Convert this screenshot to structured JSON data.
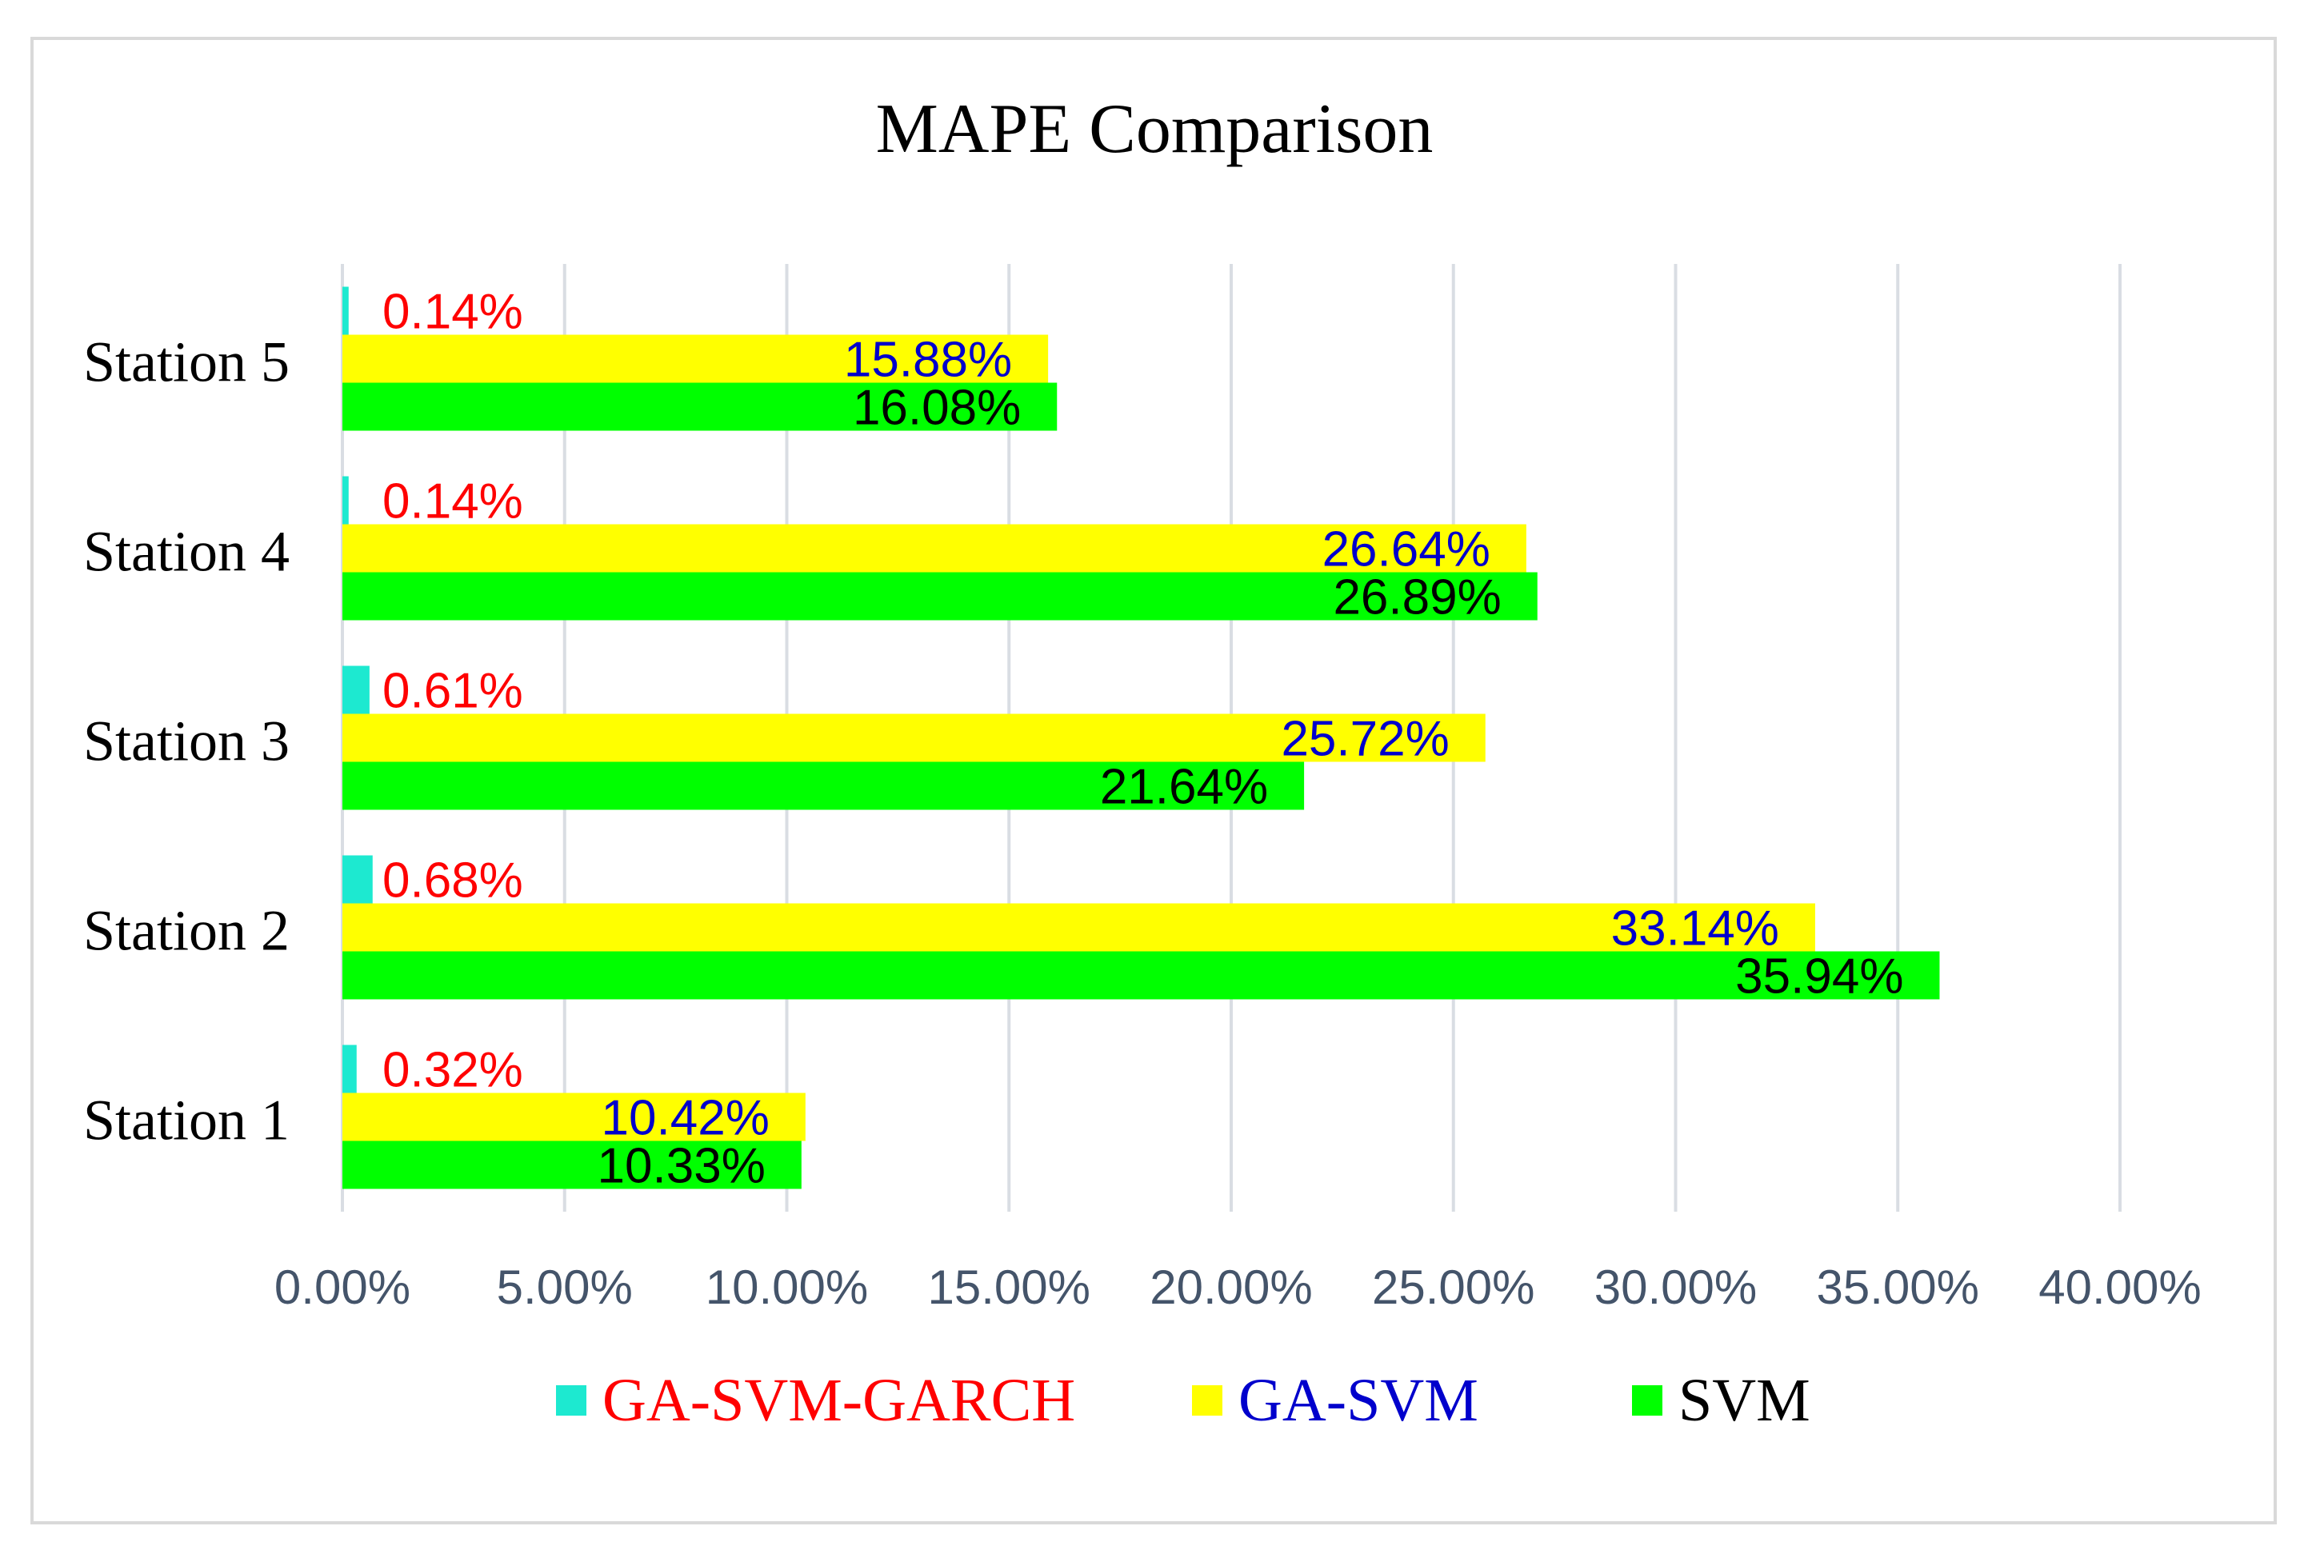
{
  "chart_data": {
    "type": "bar",
    "orientation": "horizontal",
    "title": "MAPE Comparison",
    "xlabel": "",
    "ylabel": "",
    "categories": [
      "Station 1",
      "Station 2",
      "Station 3",
      "Station 4",
      "Station 5"
    ],
    "series": [
      {
        "name": "GA-SVM-GARCH",
        "color": "#1de9d0",
        "label_color": "#ff0000",
        "values": [
          0.32,
          0.68,
          0.61,
          0.14,
          0.14
        ],
        "labels": [
          "0.32%",
          "0.68%",
          "0.61%",
          "0.14%",
          "0.14%"
        ]
      },
      {
        "name": "GA-SVM",
        "color": "#ffff00",
        "label_color": "#0000cc",
        "values": [
          10.42,
          33.14,
          25.72,
          26.64,
          15.88
        ],
        "labels": [
          "10.42%",
          "33.14%",
          "25.72%",
          "26.64%",
          "15.88%"
        ]
      },
      {
        "name": "SVM",
        "color": "#00ff00",
        "label_color": "#000000",
        "values": [
          10.33,
          35.94,
          21.64,
          26.89,
          16.08
        ],
        "labels": [
          "10.33%",
          "35.94%",
          "21.64%",
          "26.89%",
          "16.08%"
        ]
      }
    ],
    "xlim": [
      0,
      40
    ],
    "xticks": [
      0,
      5,
      10,
      15,
      20,
      25,
      30,
      35,
      40
    ],
    "xtick_labels": [
      "0.00%",
      "5.00%",
      "10.00%",
      "15.00%",
      "20.00%",
      "25.00%",
      "30.00%",
      "35.00%",
      "40.00%"
    ],
    "grid": "vertical",
    "legend_position": "bottom",
    "colors": {
      "gridline": "#d9dde3",
      "tick_label": "#44546a",
      "border": "#d9d9d9"
    }
  }
}
